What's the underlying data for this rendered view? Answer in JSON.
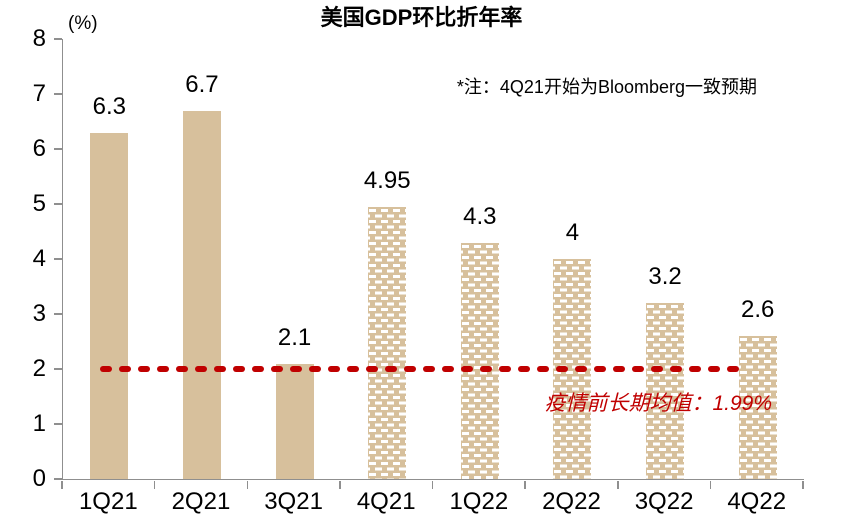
{
  "chart_data": {
    "type": "bar",
    "title": "美国GDP环比折年率",
    "unit_label": "(%)",
    "note": "*注：4Q21开始为Bloomberg一致预期",
    "categories": [
      "1Q21",
      "2Q21",
      "3Q21",
      "4Q21",
      "1Q22",
      "2Q22",
      "3Q22",
      "4Q22"
    ],
    "values": [
      6.3,
      6.7,
      2.1,
      4.95,
      4.3,
      4,
      3.2,
      2.6
    ],
    "value_labels": [
      "6.3",
      "6.7",
      "2.1",
      "4.95",
      "4.3",
      "4",
      "3.2",
      "2.6"
    ],
    "forecast_start_index": 3,
    "ylim": [
      0,
      8
    ],
    "y_ticks": [
      8,
      7,
      6,
      5,
      4,
      3,
      2,
      1,
      0
    ],
    "grid": "off",
    "legend": "none",
    "reference_line": {
      "value": 2,
      "label": "疫情前长期均值：1.99%"
    },
    "colors": {
      "bar_fill": "#d7c09c",
      "pattern_dash": "#ffffff",
      "reference_red": "#c00000",
      "axis_gray": "#8f8f8f",
      "text": "#000000"
    }
  }
}
